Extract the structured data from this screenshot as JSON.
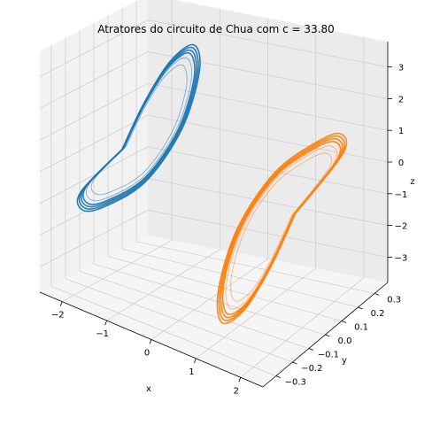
{
  "chart_data": {
    "type": "line",
    "projection": "3d",
    "title": "Atratores do circuito de Chua com c = 33.80",
    "xlabel": "x",
    "ylabel": "y",
    "zlabel": "z",
    "xlim": [
      -2.5,
      2.5
    ],
    "ylim": [
      -0.38,
      0.38
    ],
    "zlim": [
      -3.8,
      3.8
    ],
    "xticks": [
      -2,
      -1,
      0,
      1,
      2
    ],
    "xtick_labels": [
      "−2",
      "−1",
      "0",
      "1",
      "2"
    ],
    "yticks": [
      -0.3,
      -0.2,
      -0.1,
      0.0,
      0.1,
      0.2,
      0.3
    ],
    "ytick_labels": [
      "−0.3",
      "−0.2",
      "−0.1",
      "0.0",
      "0.1",
      "0.2",
      "0.3"
    ],
    "zticks": [
      -3,
      -2,
      -1,
      0,
      1,
      2,
      3
    ],
    "ztick_labels": [
      "−3",
      "−2",
      "−1",
      "0",
      "1",
      "2",
      "3"
    ],
    "grid": true,
    "series": [
      {
        "color": "#1f77b4",
        "x": [
          -2.2,
          -2.1,
          -1.8,
          -1.3,
          -0.8,
          -0.6,
          -0.8,
          -1.3,
          -1.8,
          -2.1,
          -2.2
        ],
        "y": [
          0.1,
          0.22,
          0.3,
          0.3,
          0.18,
          0.0,
          -0.18,
          -0.3,
          -0.3,
          -0.22,
          0.1
        ],
        "z": [
          -0.3,
          0.9,
          2.1,
          2.8,
          2.5,
          1.3,
          0.1,
          -0.6,
          -1.0,
          -0.8,
          -0.3
        ]
      },
      {
        "color": "#ff7f0e",
        "x": [
          2.2,
          2.1,
          1.8,
          1.3,
          0.8,
          0.6,
          0.8,
          1.3,
          1.8,
          2.1,
          2.2
        ],
        "y": [
          -0.1,
          -0.22,
          -0.3,
          -0.3,
          -0.18,
          0.0,
          0.18,
          0.3,
          0.3,
          0.22,
          -0.1
        ],
        "z": [
          0.3,
          -0.9,
          -2.1,
          -2.8,
          -2.5,
          -1.3,
          -0.1,
          0.6,
          1.0,
          0.8,
          0.3
        ]
      }
    ]
  }
}
